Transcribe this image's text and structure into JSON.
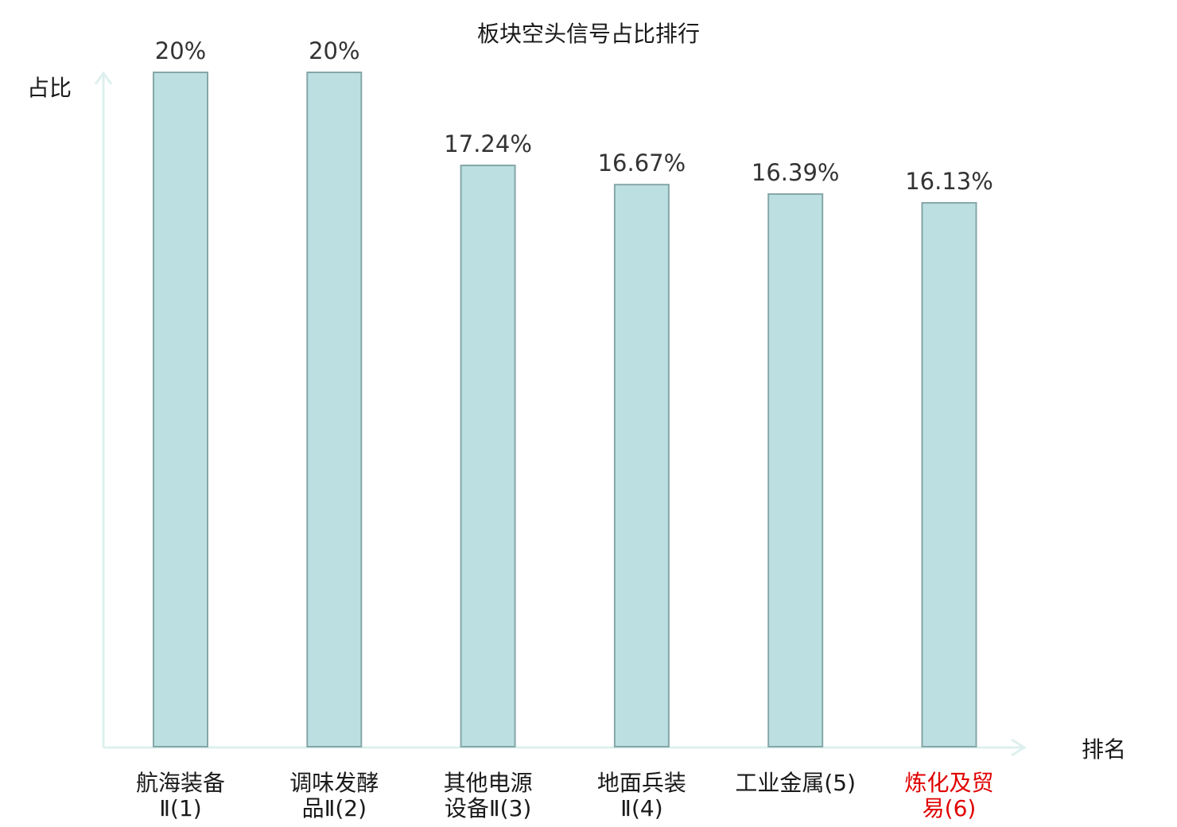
{
  "chart_data": {
    "type": "bar",
    "title": "板块空头信号占比排行",
    "ylabel": "占比",
    "xlabel": "排名",
    "ylim": [
      0,
      20
    ],
    "categories": [
      [
        "航海装备",
        "Ⅱ(1)"
      ],
      [
        "调味发酵",
        "品Ⅱ(2)"
      ],
      [
        "其他电源",
        "设备Ⅱ(3)"
      ],
      [
        "地面兵装",
        "Ⅱ(4)"
      ],
      [
        "工业金属(5)"
      ],
      [
        "炼化及贸",
        "易(6)"
      ]
    ],
    "values": [
      20,
      20,
      17.24,
      16.67,
      16.39,
      16.13
    ],
    "value_labels": [
      "20%",
      "20%",
      "17.24%",
      "16.67%",
      "16.39%",
      "16.13%"
    ],
    "highlight_index": 5,
    "colors": {
      "bar_fill": "#bce0e2",
      "bar_stroke": "#86a6a8",
      "axis": "#ddf0ee",
      "highlight_label": "#e00000",
      "label": "#1a1a1a"
    },
    "grid": false
  }
}
